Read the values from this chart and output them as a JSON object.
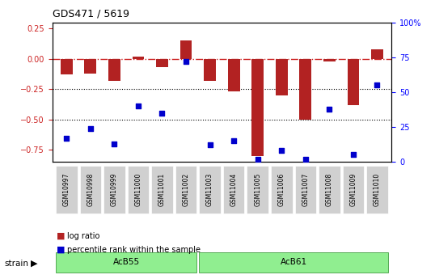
{
  "title": "GDS471 / 5619",
  "samples": [
    "GSM10997",
    "GSM10998",
    "GSM10999",
    "GSM11000",
    "GSM11001",
    "GSM11002",
    "GSM11003",
    "GSM11004",
    "GSM11005",
    "GSM11006",
    "GSM11007",
    "GSM11008",
    "GSM11009",
    "GSM11010"
  ],
  "log_ratio": [
    -0.13,
    -0.12,
    -0.18,
    0.02,
    -0.07,
    0.15,
    -0.18,
    -0.27,
    -0.8,
    -0.3,
    -0.5,
    -0.02,
    -0.38,
    0.08
  ],
  "percentile_rank": [
    17,
    24,
    13,
    40,
    35,
    72,
    12,
    15,
    2,
    8,
    2,
    38,
    5,
    55
  ],
  "bar_color": "#b22222",
  "dot_color": "#0000cc",
  "groups": [
    {
      "label": "AcB55",
      "start": 0,
      "end": 5
    },
    {
      "label": "AcB61",
      "start": 6,
      "end": 13
    }
  ],
  "group_colors": [
    "#90ee90",
    "#00cc00"
  ],
  "ylim_left": [
    -0.85,
    0.3
  ],
  "ylim_right": [
    0,
    100
  ],
  "yticks_left": [
    -0.75,
    -0.5,
    -0.25,
    0.0,
    0.25
  ],
  "yticks_right": [
    0,
    25,
    50,
    75,
    100
  ],
  "ytick_labels_right": [
    "0",
    "25",
    "50",
    "75",
    "100%"
  ],
  "hlines": [
    0.0,
    -0.25,
    -0.5
  ],
  "hline_styles": [
    "r-.",
    "k:",
    "k:"
  ],
  "strain_label": "strain",
  "legend_items": [
    "log ratio",
    "percentile rank within the sample"
  ]
}
